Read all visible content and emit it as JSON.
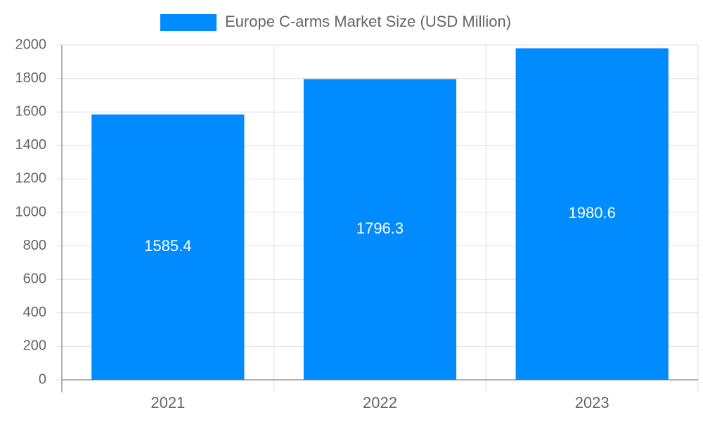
{
  "chart_data": {
    "type": "bar",
    "categories": [
      "2021",
      "2022",
      "2023"
    ],
    "series": [
      {
        "name": "Europe C-arms Market Size (USD Million)",
        "color": "#008cff",
        "values": [
          1585.4,
          1796.3,
          1980.6
        ]
      }
    ],
    "ylim": [
      0,
      2000
    ],
    "yticks": [
      0,
      200,
      400,
      600,
      800,
      1000,
      1200,
      1400,
      1600,
      1800,
      2000
    ],
    "grid": true,
    "legend": "top"
  }
}
